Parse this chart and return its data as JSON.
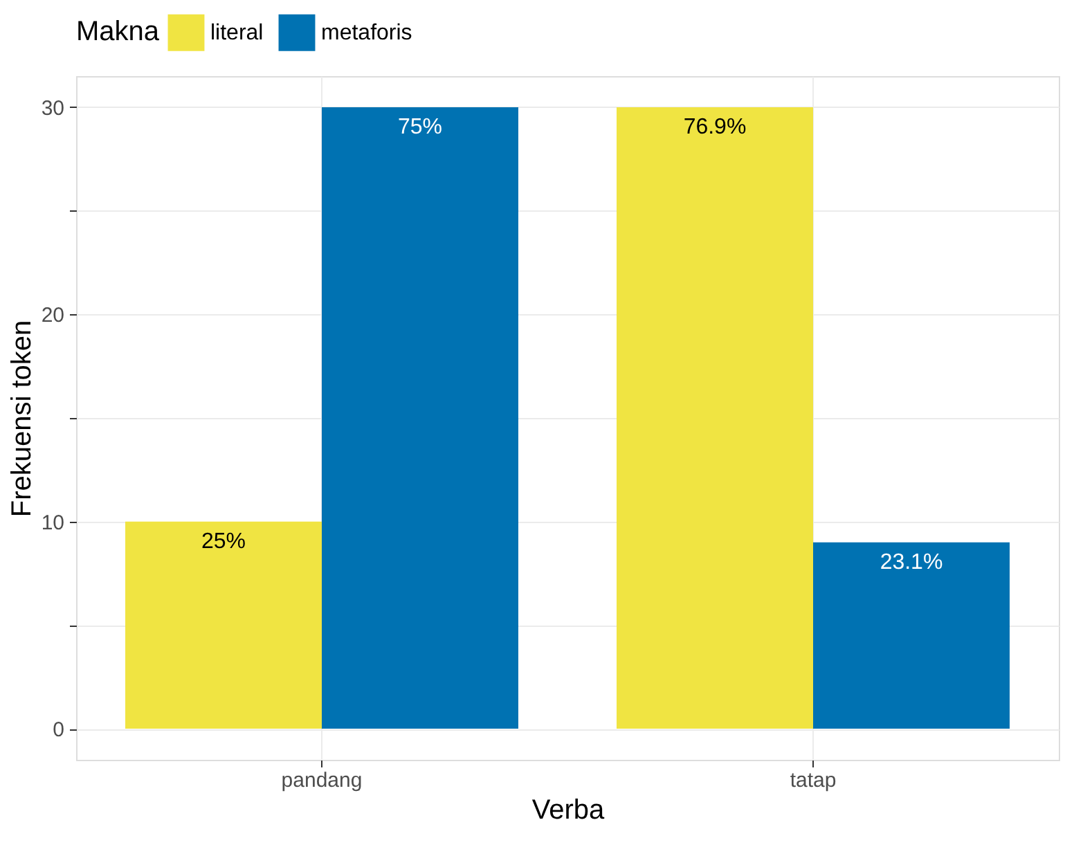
{
  "chart_data": {
    "type": "bar",
    "xlabel": "Verba",
    "ylabel": "Frekuensi token",
    "legend_title": "Makna",
    "legend": "top",
    "grid": true,
    "categories": [
      "pandang",
      "tatap"
    ],
    "series": [
      {
        "name": "literal",
        "color": "#f0e442",
        "values": [
          10,
          30
        ]
      },
      {
        "name": "metaforis",
        "color": "#0072b2",
        "values": [
          30,
          9
        ]
      }
    ],
    "annotations": [
      "25%",
      "75%",
      "76.9%",
      "23.1%"
    ],
    "ylim": [
      -1.5,
      31.5
    ],
    "yticks": [
      0,
      {
        "value": 5,
        "label": null
      },
      10,
      {
        "value": 15,
        "label": null
      },
      20,
      {
        "value": 25,
        "label": null
      },
      30
    ]
  }
}
